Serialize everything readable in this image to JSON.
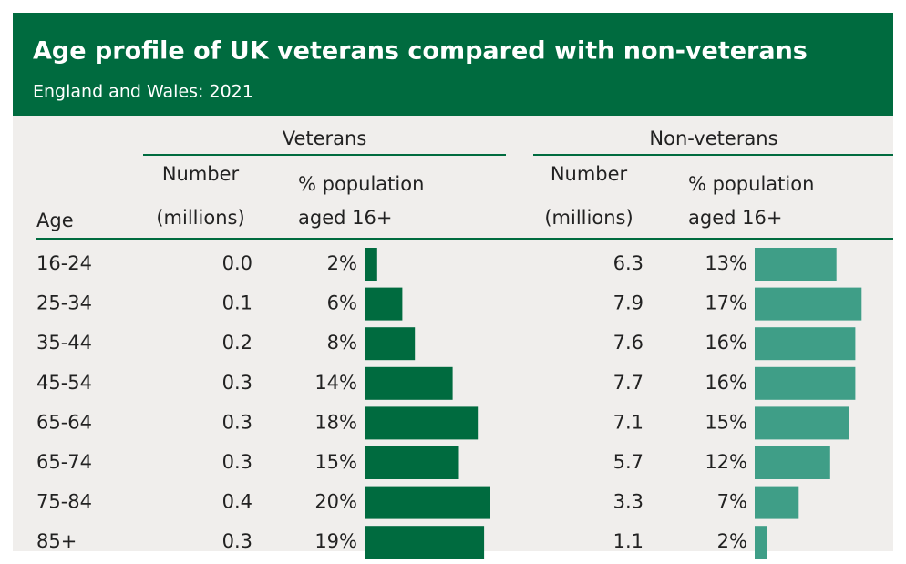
{
  "header": {
    "title": "Age profile of UK veterans compared with non-veterans",
    "subtitle": "England and Wales: 2021"
  },
  "table": {
    "groups": [
      "Veterans",
      "Non-veterans"
    ],
    "age_header": "Age",
    "number_header": [
      "Number",
      "(millions)"
    ],
    "pct_header": [
      "% population",
      "aged 16+"
    ],
    "colors": {
      "veterans": "#006b3f",
      "non_veterans": "#3f9e87"
    },
    "rows": [
      {
        "age": "16-24",
        "vet_number": "0.0",
        "vet_pct": 2,
        "vet_pct_label": "2%",
        "non_number": "6.3",
        "non_pct": 13,
        "non_pct_label": "13%"
      },
      {
        "age": "25-34",
        "vet_number": "0.1",
        "vet_pct": 6,
        "vet_pct_label": "6%",
        "non_number": "7.9",
        "non_pct": 17,
        "non_pct_label": "17%"
      },
      {
        "age": "35-44",
        "vet_number": "0.2",
        "vet_pct": 8,
        "vet_pct_label": "8%",
        "non_number": "7.6",
        "non_pct": 16,
        "non_pct_label": "16%"
      },
      {
        "age": "45-54",
        "vet_number": "0.3",
        "vet_pct": 14,
        "vet_pct_label": "14%",
        "non_number": "7.7",
        "non_pct": 16,
        "non_pct_label": "16%"
      },
      {
        "age": "65-64",
        "vet_number": "0.3",
        "vet_pct": 18,
        "vet_pct_label": "18%",
        "non_number": "7.1",
        "non_pct": 15,
        "non_pct_label": "15%"
      },
      {
        "age": "65-74",
        "vet_number": "0.3",
        "vet_pct": 15,
        "vet_pct_label": "15%",
        "non_number": "5.7",
        "non_pct": 12,
        "non_pct_label": "12%"
      },
      {
        "age": "75-84",
        "vet_number": "0.4",
        "vet_pct": 20,
        "vet_pct_label": "20%",
        "non_number": "3.3",
        "non_pct": 7,
        "non_pct_label": "7%"
      },
      {
        "age": "85+",
        "vet_number": "0.3",
        "vet_pct": 19,
        "vet_pct_label": "19%",
        "non_number": "1.1",
        "non_pct": 2,
        "non_pct_label": "2%"
      }
    ]
  }
}
